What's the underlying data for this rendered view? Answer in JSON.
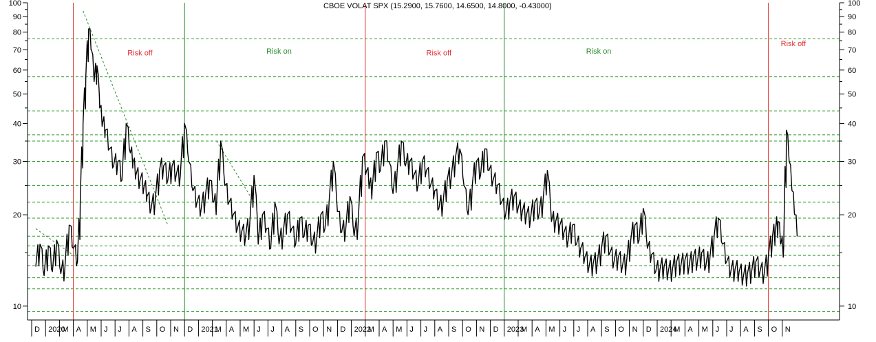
{
  "chart_data": {
    "type": "line",
    "title": "CBOE VOLAT SPX (15.2900, 15.7600, 14.6500, 14.8000, -0.43000)",
    "y_scale": "log",
    "ylim": [
      9,
      100
    ],
    "y_ticks": [
      10,
      20,
      30,
      40,
      50,
      60,
      70,
      80,
      90,
      100
    ],
    "y_minor_ticks": [
      15,
      25,
      35,
      45,
      55,
      65,
      75,
      85,
      95
    ],
    "x_labels": [
      "D",
      "2020",
      "M",
      "A",
      "M",
      "J",
      "J",
      "A",
      "S",
      "O",
      "N",
      "D",
      "2021",
      "M",
      "A",
      "M",
      "J",
      "J",
      "A",
      "S",
      "O",
      "N",
      "D",
      "2022",
      "M",
      "A",
      "M",
      "J",
      "J",
      "A",
      "S",
      "O",
      "N",
      "D",
      "2023",
      "M",
      "A",
      "M",
      "J",
      "J",
      "A",
      "S",
      "O",
      "N",
      "D",
      "2024",
      "M",
      "A",
      "M",
      "J",
      "J",
      "A",
      "S",
      "O",
      "N"
    ],
    "horizontal_levels": [
      9.0,
      9.6,
      11.4,
      12.4,
      13.6,
      14.7,
      15.8,
      17.0,
      19.5,
      22.0,
      25.0,
      30.0,
      35.0,
      36.7,
      44.0,
      57.0,
      76.0
    ],
    "grid": "dashed green horizontal levels",
    "regime_lines": [
      {
        "date_index": 3,
        "color": "#e03030"
      },
      {
        "date_index": 11,
        "color": "#2a8a2a"
      },
      {
        "date_index": 24,
        "color": "#e03030"
      },
      {
        "date_index": 34,
        "color": "#2a8a2a"
      },
      {
        "date_index": 53,
        "color": "#e03030"
      }
    ],
    "annotations": [
      {
        "text": "Risk off",
        "color": "#e03030",
        "x_index": 7.5,
        "y": 67
      },
      {
        "text": "Risk on",
        "color": "#2a8a2a",
        "x_index": 17.5,
        "y": 68
      },
      {
        "text": "Risk off",
        "color": "#e03030",
        "x_index": 29.0,
        "y": 67
      },
      {
        "text": "Risk on",
        "color": "#2a8a2a",
        "x_index": 40.5,
        "y": 68
      },
      {
        "text": "Risk off",
        "color": "#e03030",
        "x_index": 54.5,
        "y": 72
      }
    ],
    "trend_lines": [
      {
        "from": [
          3.4,
          94
        ],
        "to": [
          9.5,
          18.5
        ]
      },
      {
        "from": [
          0.0,
          18.0
        ],
        "to": [
          2.9,
          14.5
        ]
      },
      {
        "from": [
          13.0,
          35.0
        ],
        "to": [
          15.7,
          22.0
        ]
      }
    ],
    "series": [
      {
        "values_x_index": [
          0,
          0.3,
          0.6,
          0.9,
          1.2,
          1.5,
          1.8,
          2.1,
          2.4,
          2.7,
          3.0,
          3.2,
          3.4,
          3.6,
          3.8,
          4.0,
          4.2,
          4.4,
          4.6,
          4.8,
          5.0,
          5.3,
          5.6,
          5.9,
          6.2,
          6.5,
          6.8,
          7.0,
          7.2,
          7.5,
          7.8,
          8.0,
          8.3,
          8.6,
          8.9,
          9.2,
          9.5,
          9.8,
          10.1,
          10.4,
          10.7,
          11.0,
          11.3,
          11.6,
          11.9,
          12.2,
          12.5,
          12.8,
          13.0,
          13.3,
          13.6,
          13.9,
          14.2,
          14.5,
          14.8,
          15.1,
          15.4,
          15.7,
          16.0,
          16.3,
          16.6,
          16.9,
          17.2,
          17.5,
          17.8,
          18.1,
          18.4,
          18.7,
          19.0,
          19.3,
          19.6,
          19.9,
          20.2,
          20.5,
          20.8,
          21.1,
          21.4,
          21.7,
          22.0,
          22.3,
          22.6,
          22.9,
          23.2,
          23.5,
          23.8,
          24.0,
          24.2,
          24.5,
          24.8,
          25.1,
          25.4,
          25.7,
          26.0,
          26.3,
          26.6,
          26.9,
          27.2,
          27.5,
          27.8,
          28.1,
          28.4,
          28.7,
          29.0,
          29.3,
          29.6,
          29.9,
          30.2,
          30.5,
          30.8,
          31.1,
          31.4,
          31.7,
          32.0,
          32.3,
          32.6,
          32.9,
          33.2,
          33.5,
          33.8,
          34.1,
          34.4,
          34.7,
          35.0,
          35.3,
          35.6,
          35.9,
          36.2,
          36.5,
          36.8,
          37.1,
          37.4,
          37.7,
          38.0,
          38.3,
          38.6,
          38.9,
          39.2,
          39.5,
          39.8,
          40.1,
          40.4,
          40.7,
          41.0,
          41.3,
          41.6,
          41.9,
          42.2,
          42.5,
          42.8,
          43.1,
          43.4,
          43.7,
          44.0,
          44.3,
          44.6,
          44.9,
          45.2,
          45.5,
          45.8,
          46.1,
          46.4,
          46.7,
          47.0,
          47.3,
          47.6,
          47.9,
          48.2,
          48.5,
          48.8,
          49.1,
          49.4,
          49.7,
          50.0,
          50.3,
          50.6,
          50.9,
          51.2,
          51.5,
          51.8,
          52.1,
          52.4,
          52.7,
          53.0,
          53.2,
          53.4,
          53.6,
          53.8,
          54.0,
          54.2,
          54.4,
          54.6,
          54.8
        ],
        "values": [
          13.5,
          16.0,
          12.6,
          15.8,
          13.0,
          16.5,
          12.8,
          13.5,
          18.5,
          15.5,
          14.0,
          22.0,
          40.0,
          57.0,
          82.0,
          70.0,
          55.0,
          62.0,
          45.0,
          40.0,
          38.0,
          33.0,
          29.0,
          30.0,
          26.0,
          40.0,
          32.0,
          30.0,
          27.0,
          26.0,
          25.0,
          23.0,
          21.0,
          22.5,
          28.0,
          29.0,
          26.0,
          29.0,
          27.0,
          27.0,
          40.0,
          30.0,
          24.0,
          22.0,
          21.0,
          23.0,
          26.0,
          22.0,
          21.5,
          35.0,
          25.0,
          22.0,
          20.0,
          18.0,
          17.5,
          17.0,
          19.0,
          27.0,
          16.0,
          20.0,
          18.0,
          15.5,
          22.0,
          16.0,
          17.5,
          20.0,
          18.0,
          16.0,
          19.5,
          17.0,
          18.5,
          16.0,
          16.5,
          20.0,
          18.0,
          22.0,
          30.0,
          20.5,
          17.5,
          18.0,
          23.0,
          17.0,
          19.0,
          31.0,
          28.0,
          25.0,
          24.0,
          32.0,
          28.0,
          35.0,
          30.0,
          23.5,
          28.0,
          35.0,
          29.0,
          30.0,
          27.0,
          25.0,
          30.0,
          28.0,
          25.0,
          24.0,
          21.0,
          22.0,
          26.0,
          27.0,
          31.0,
          33.0,
          25.0,
          20.0,
          25.0,
          30.0,
          27.0,
          33.0,
          28.0,
          26.0,
          25.0,
          22.0,
          20.0,
          22.0,
          23.0,
          21.0,
          20.5,
          20.0,
          19.5,
          22.0,
          20.0,
          22.5,
          28.0,
          19.0,
          19.0,
          18.5,
          17.5,
          16.5,
          18.5,
          16.0,
          15.5,
          14.5,
          13.5,
          13.8,
          14.0,
          15.5,
          17.0,
          15.0,
          14.0,
          14.5,
          13.5,
          14.0,
          16.5,
          18.5,
          16.5,
          21.0,
          15.5,
          14.8,
          13.0,
          13.2,
          13.5,
          13.0,
          13.2,
          14.0,
          13.5,
          14.2,
          13.5,
          14.5,
          14.0,
          15.0,
          13.5,
          14.5,
          17.0,
          19.5,
          16.0,
          14.0,
          13.0,
          13.2,
          13.0,
          12.5,
          12.8,
          13.0,
          14.0,
          13.0,
          12.8,
          14.5,
          17.0,
          17.5,
          19.0,
          16.0,
          15.5,
          38.0,
          30.0,
          24.0,
          20.0,
          17.0,
          15.0,
          14.8
        ]
      }
    ]
  }
}
